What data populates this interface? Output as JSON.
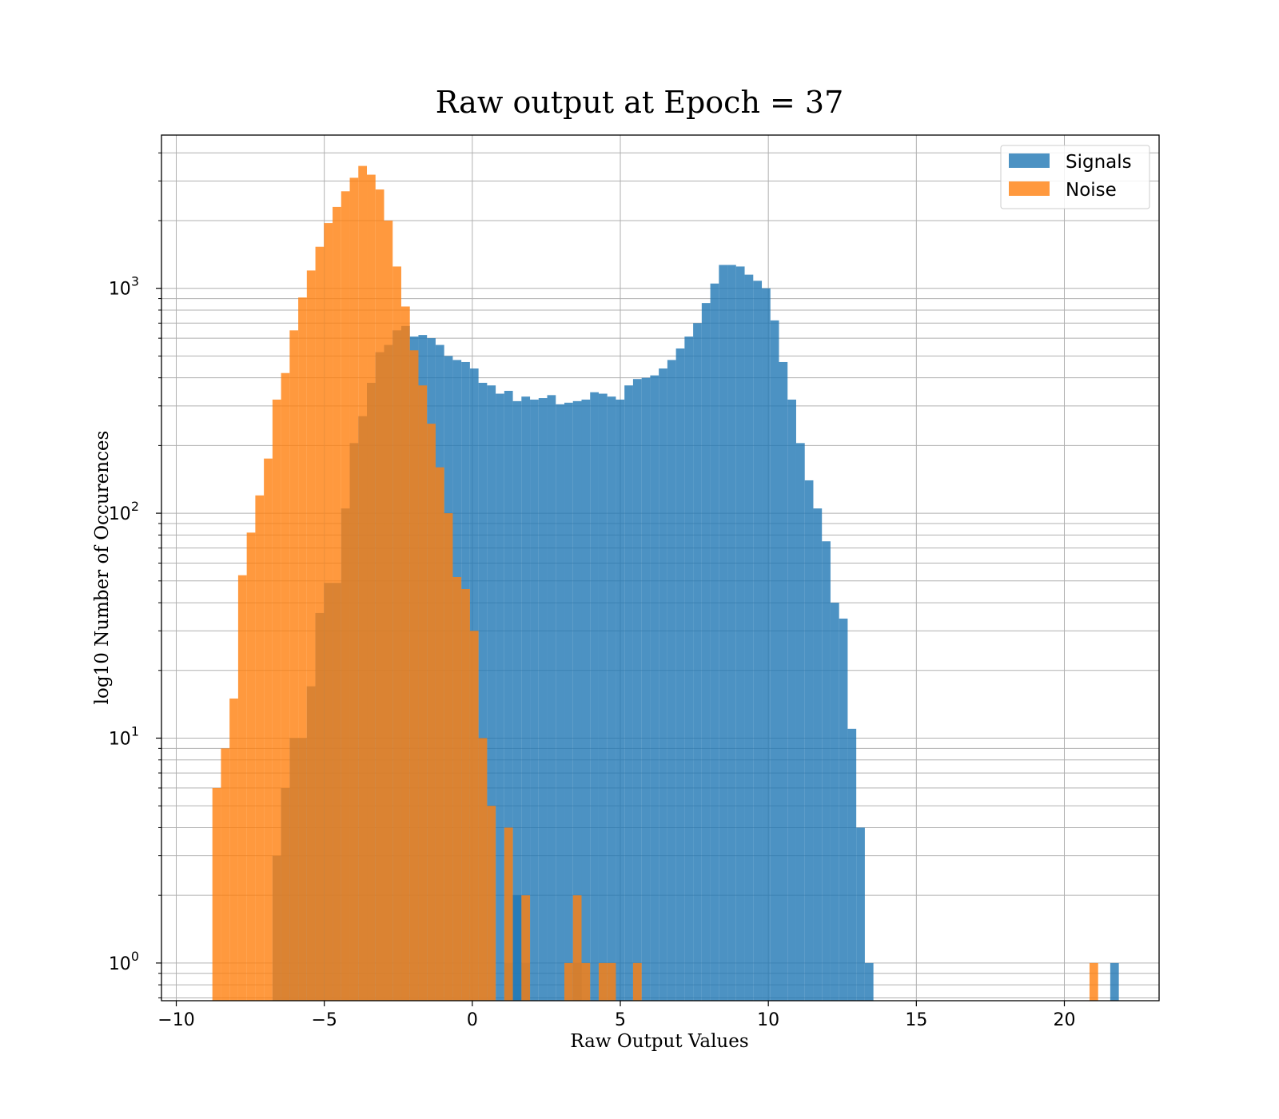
{
  "chart_data": {
    "type": "histogram",
    "title": "Raw output at Epoch = 37",
    "xlabel": "Raw Output Values",
    "ylabel": "log10 Number of Occurences",
    "xlim": [
      -10.5,
      23.2
    ],
    "ylim": [
      0.68,
      4800
    ],
    "yscale": "log",
    "grid": true,
    "legend_position": "top-right",
    "bin_width": 0.29,
    "x_ticks": [
      {
        "value": -10,
        "label": "−10"
      },
      {
        "value": -5,
        "label": "−5"
      },
      {
        "value": 0,
        "label": "0"
      },
      {
        "value": 5,
        "label": "5"
      },
      {
        "value": 10,
        "label": "10"
      },
      {
        "value": 15,
        "label": "15"
      },
      {
        "value": 20,
        "label": "20"
      }
    ],
    "y_ticks": [
      {
        "value": 1,
        "base": "10",
        "exp": "0"
      },
      {
        "value": 10,
        "base": "10",
        "exp": "1"
      },
      {
        "value": 100,
        "base": "10",
        "exp": "2"
      },
      {
        "value": 1000,
        "base": "10",
        "exp": "3"
      }
    ],
    "series": [
      {
        "name": "Signals",
        "color": "#1f77b4",
        "opacity": 0.8,
        "bins": [
          [
            -6.75,
            3
          ],
          [
            -6.46,
            6
          ],
          [
            -6.17,
            10
          ],
          [
            -5.88,
            10
          ],
          [
            -5.59,
            17
          ],
          [
            -5.3,
            36
          ],
          [
            -5.01,
            49
          ],
          [
            -4.72,
            49
          ],
          [
            -4.43,
            105
          ],
          [
            -4.14,
            205
          ],
          [
            -3.85,
            270
          ],
          [
            -3.56,
            380
          ],
          [
            -3.27,
            520
          ],
          [
            -2.98,
            560
          ],
          [
            -2.69,
            650
          ],
          [
            -2.4,
            680
          ],
          [
            -2.11,
            610
          ],
          [
            -1.82,
            620
          ],
          [
            -1.53,
            600
          ],
          [
            -1.24,
            560
          ],
          [
            -0.95,
            500
          ],
          [
            -0.66,
            480
          ],
          [
            -0.37,
            470
          ],
          [
            -0.08,
            440
          ],
          [
            0.21,
            380
          ],
          [
            0.5,
            370
          ],
          [
            0.79,
            340
          ],
          [
            1.08,
            350
          ],
          [
            1.37,
            315
          ],
          [
            1.66,
            330
          ],
          [
            1.95,
            320
          ],
          [
            2.24,
            325
          ],
          [
            2.53,
            335
          ],
          [
            2.82,
            305
          ],
          [
            3.11,
            310
          ],
          [
            3.4,
            315
          ],
          [
            3.69,
            320
          ],
          [
            3.98,
            345
          ],
          [
            4.27,
            340
          ],
          [
            4.56,
            330
          ],
          [
            4.85,
            320
          ],
          [
            5.14,
            370
          ],
          [
            5.43,
            395
          ],
          [
            5.72,
            400
          ],
          [
            6.01,
            410
          ],
          [
            6.3,
            440
          ],
          [
            6.59,
            480
          ],
          [
            6.88,
            540
          ],
          [
            7.17,
            610
          ],
          [
            7.46,
            700
          ],
          [
            7.75,
            860
          ],
          [
            8.04,
            1050
          ],
          [
            8.33,
            1270
          ],
          [
            8.62,
            1270
          ],
          [
            8.91,
            1250
          ],
          [
            9.2,
            1150
          ],
          [
            9.49,
            1080
          ],
          [
            9.78,
            1000
          ],
          [
            10.07,
            720
          ],
          [
            10.36,
            470
          ],
          [
            10.65,
            320
          ],
          [
            10.94,
            205
          ],
          [
            11.23,
            140
          ],
          [
            11.52,
            105
          ],
          [
            11.81,
            75
          ],
          [
            12.1,
            40
          ],
          [
            12.39,
            34
          ],
          [
            12.68,
            11
          ],
          [
            12.97,
            4
          ],
          [
            13.26,
            1
          ],
          [
            1.08,
            1
          ],
          [
            1.37,
            2
          ],
          [
            1.66,
            1
          ],
          [
            3.4,
            1
          ],
          [
            21.55,
            1
          ]
        ]
      },
      {
        "name": "Noise",
        "color": "#ff7f0e",
        "opacity": 0.8,
        "bins": [
          [
            -8.78,
            6
          ],
          [
            -8.49,
            9
          ],
          [
            -8.2,
            15
          ],
          [
            -7.91,
            53
          ],
          [
            -7.62,
            82
          ],
          [
            -7.33,
            120
          ],
          [
            -7.04,
            175
          ],
          [
            -6.75,
            320
          ],
          [
            -6.46,
            420
          ],
          [
            -6.17,
            650
          ],
          [
            -5.88,
            910
          ],
          [
            -5.59,
            1200
          ],
          [
            -5.3,
            1530
          ],
          [
            -5.01,
            1950
          ],
          [
            -4.72,
            2300
          ],
          [
            -4.43,
            2700
          ],
          [
            -4.14,
            3100
          ],
          [
            -3.85,
            3500
          ],
          [
            -3.56,
            3200
          ],
          [
            -3.27,
            2750
          ],
          [
            -2.98,
            2000
          ],
          [
            -2.69,
            1250
          ],
          [
            -2.4,
            830
          ],
          [
            -2.11,
            530
          ],
          [
            -1.82,
            370
          ],
          [
            -1.53,
            250
          ],
          [
            -1.24,
            160
          ],
          [
            -0.95,
            100
          ],
          [
            -0.66,
            52
          ],
          [
            -0.37,
            46
          ],
          [
            -0.08,
            30
          ],
          [
            0.21,
            10
          ],
          [
            0.5,
            5
          ],
          [
            1.08,
            4
          ],
          [
            1.66,
            2
          ],
          [
            3.4,
            2
          ],
          [
            3.11,
            1
          ],
          [
            3.69,
            1
          ],
          [
            4.27,
            1
          ],
          [
            4.56,
            1
          ],
          [
            5.43,
            1
          ],
          [
            20.85,
            1
          ]
        ]
      }
    ]
  }
}
